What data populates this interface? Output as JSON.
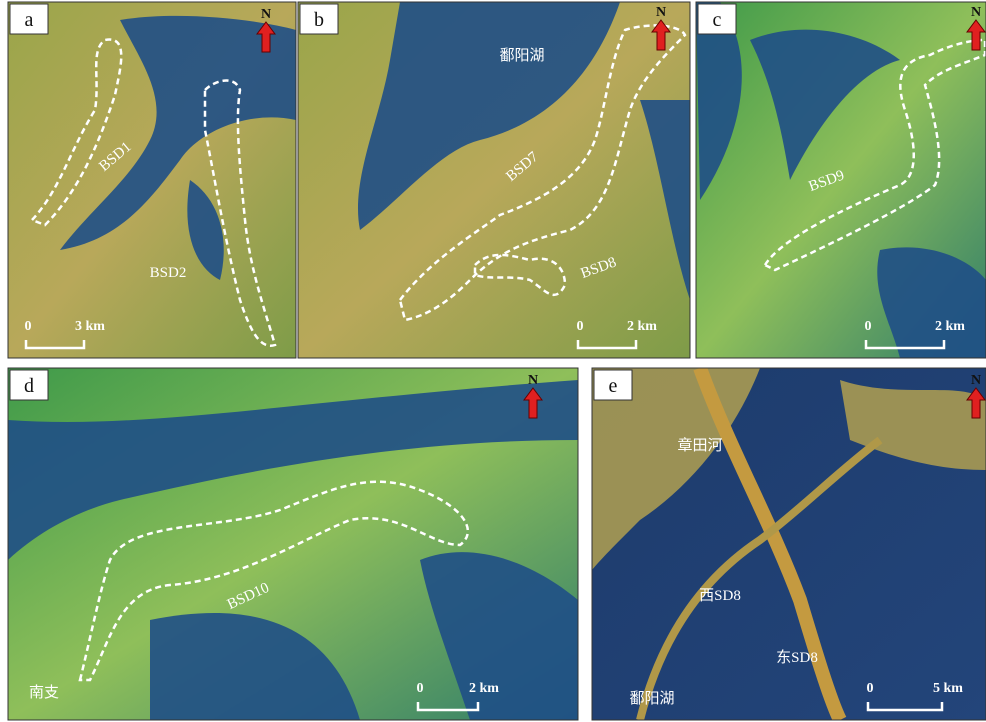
{
  "panels": [
    {
      "letter": "a",
      "north": "N",
      "scale_zero": "0",
      "scale_length": "3 km",
      "labels": [
        "BSD1",
        "BSD2"
      ]
    },
    {
      "letter": "b",
      "north": "N",
      "scale_zero": "0",
      "scale_length": "2 km",
      "labels": [
        "鄱阳湖",
        "BSD7",
        "BSD8"
      ]
    },
    {
      "letter": "c",
      "north": "N",
      "scale_zero": "0",
      "scale_length": "2 km",
      "labels": [
        "BSD9"
      ]
    },
    {
      "letter": "d",
      "north": "N",
      "scale_zero": "0",
      "scale_length": "2 km",
      "labels": [
        "BSD10",
        "南支"
      ]
    },
    {
      "letter": "e",
      "north": "N",
      "scale_zero": "0",
      "scale_length": "5 km",
      "labels": [
        "章田河",
        "西SD8",
        "东SD8",
        "鄱阳湖"
      ]
    }
  ]
}
